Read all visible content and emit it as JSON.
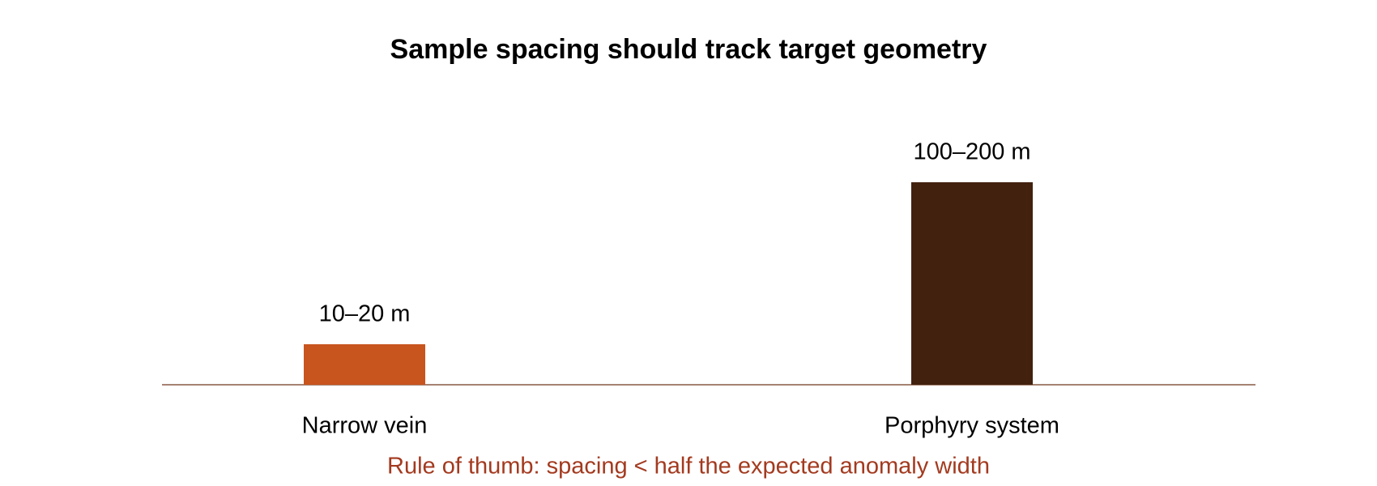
{
  "chart_data": {
    "type": "bar",
    "title": "Sample spacing should track target geometry",
    "categories": [
      "Narrow vein",
      "Porphyry system"
    ],
    "values": [
      20,
      100
    ],
    "value_labels": [
      "10–20 m",
      "100–200 m"
    ],
    "colors": [
      "#c8541e",
      "#42210f"
    ],
    "ylim": [
      0,
      100
    ],
    "annotation": "Rule of thumb: spacing < half the expected anomaly width"
  }
}
